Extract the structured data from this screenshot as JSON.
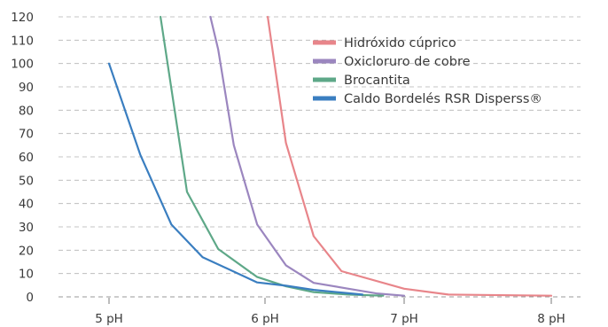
{
  "chart_data": {
    "type": "line",
    "title": "",
    "xlabel": "",
    "ylabel": "",
    "ylim": [
      0,
      120
    ],
    "yticks": [
      0,
      10,
      20,
      30,
      40,
      50,
      60,
      70,
      80,
      90,
      100,
      110,
      120
    ],
    "xticks": [
      {
        "x": 5,
        "label": "5 pH"
      },
      {
        "x": 6,
        "label": "6 pH"
      },
      {
        "x": 7,
        "label": "7 pH"
      },
      {
        "x": 8,
        "label": "8 pH"
      }
    ],
    "grid": "horizontal",
    "legend": "top-right",
    "series": [
      {
        "name": "Hidróxido cúprico",
        "color": "#e8858a",
        "x": [
          6.02,
          6.15,
          6.35,
          6.55,
          7.0,
          7.3,
          8.0
        ],
        "y": [
          120,
          66,
          26,
          11,
          3.5,
          1.0,
          0.5
        ]
      },
      {
        "name": "Oxicloruro de cobre",
        "color": "#9b86bf",
        "x": [
          5.65,
          5.7,
          5.8,
          5.95,
          6.15,
          6.35,
          6.6,
          6.8,
          7.0
        ],
        "y": [
          120,
          106,
          65,
          31,
          13.5,
          6,
          3.5,
          1.5,
          0.5
        ]
      },
      {
        "name": "Brocantita",
        "color": "#5ea888",
        "x": [
          5.33,
          5.5,
          5.7,
          5.95,
          6.15,
          6.35,
          6.6,
          6.85
        ],
        "y": [
          120,
          45,
          20.5,
          8.5,
          4.5,
          2,
          1,
          0.5
        ]
      },
      {
        "name": "Caldo Bordelés RSR Disperss®",
        "color": "#3a7ec0",
        "x": [
          5.0,
          5.2,
          5.4,
          5.6,
          5.95,
          6.15,
          6.35,
          6.7
        ],
        "y": [
          100,
          61,
          31,
          17,
          6.2,
          4.8,
          3,
          1
        ]
      }
    ]
  }
}
